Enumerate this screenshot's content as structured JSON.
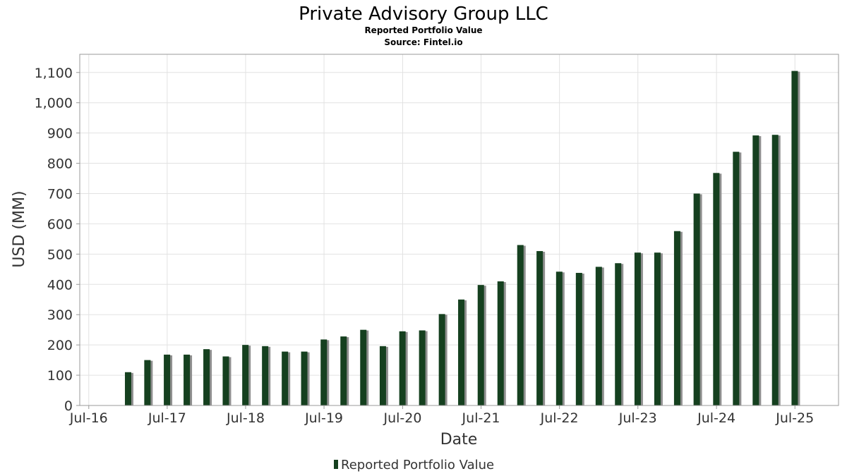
{
  "chart_data": {
    "type": "bar",
    "title": "Private Advisory Group LLC",
    "subtitle": "Reported Portfolio Value",
    "source": "Source: Fintel.io",
    "xlabel": "Date",
    "ylabel": "USD (MM)",
    "ylim": [
      0,
      1160
    ],
    "yticks": [
      0,
      100,
      200,
      300,
      400,
      500,
      600,
      700,
      800,
      900,
      1000,
      1100
    ],
    "ytick_labels": [
      "0",
      "100",
      "200",
      "300",
      "400",
      "500",
      "600",
      "700",
      "800",
      "900",
      "1,000",
      "1,100"
    ],
    "xlim": [
      "2016-05-20",
      "2026-01-20"
    ],
    "xticks": [
      "2016-07-01",
      "2017-07-01",
      "2018-07-01",
      "2019-07-01",
      "2020-07-01",
      "2021-07-01",
      "2022-07-01",
      "2023-07-01",
      "2024-07-01",
      "2025-07-01"
    ],
    "xtick_labels": [
      "Jul-16",
      "Jul-17",
      "Jul-18",
      "Jul-19",
      "Jul-20",
      "Jul-21",
      "Jul-22",
      "Jul-23",
      "Jul-24",
      "Jul-25"
    ],
    "grid": true,
    "legend_position": "bottom-center",
    "colors": {
      "bar": "#15401f",
      "bar_shadow": "#8f8f8f",
      "grid": "#e2e2e2",
      "frame": "#999999"
    },
    "series": [
      {
        "name": "Reported Portfolio Value",
        "x": [
          "2016-12-31",
          "2017-03-31",
          "2017-06-30",
          "2017-09-30",
          "2017-12-31",
          "2018-03-31",
          "2018-06-30",
          "2018-09-30",
          "2018-12-31",
          "2019-03-31",
          "2019-06-30",
          "2019-09-30",
          "2019-12-31",
          "2020-03-31",
          "2020-06-30",
          "2020-09-30",
          "2020-12-31",
          "2021-03-31",
          "2021-06-30",
          "2021-09-30",
          "2021-12-31",
          "2022-03-31",
          "2022-06-30",
          "2022-09-30",
          "2022-12-31",
          "2023-03-31",
          "2023-06-30",
          "2023-09-30",
          "2023-12-31",
          "2024-03-31",
          "2024-06-30",
          "2024-09-30",
          "2024-12-31",
          "2025-03-31",
          "2025-06-30"
        ],
        "values": [
          110,
          150,
          168,
          168,
          186,
          162,
          200,
          196,
          178,
          178,
          218,
          228,
          250,
          196,
          245,
          248,
          302,
          350,
          398,
          410,
          530,
          510,
          442,
          438,
          458,
          470,
          505,
          505,
          576,
          700,
          768,
          838,
          892,
          894,
          1105
        ]
      }
    ]
  }
}
